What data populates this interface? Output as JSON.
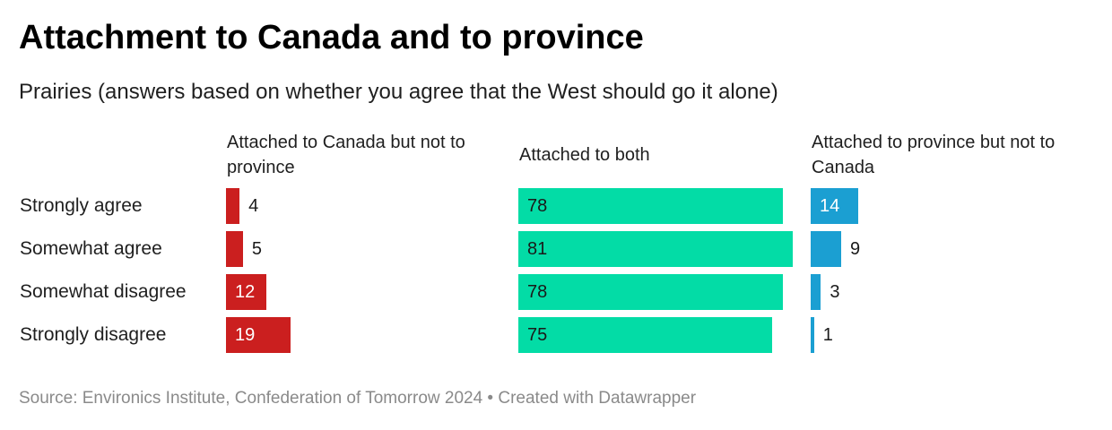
{
  "title": "Attachment to Canada and to province",
  "subtitle": "Prairies (answers based on whether you agree that the West should go it alone)",
  "source": "Source: Environics Institute, Confederation of Tomorrow 2024 • Created with Datawrapper",
  "chart_data": {
    "type": "bar",
    "orientation": "horizontal",
    "layout": "small-multiples",
    "categories": [
      "Strongly agree",
      "Somewhat agree",
      "Somewhat disagree",
      "Strongly disagree"
    ],
    "series": [
      {
        "name": "Attached to Canada but not to province",
        "values": [
          4,
          5,
          12,
          19
        ],
        "color": "#cb1f1f"
      },
      {
        "name": "Attached to both",
        "values": [
          78,
          81,
          78,
          75
        ],
        "color": "#03dca6"
      },
      {
        "name": "Attached to province but not to Canada",
        "values": [
          14,
          9,
          3,
          1
        ],
        "color": "#1b9fd2"
      }
    ],
    "xlim": [
      0,
      81
    ],
    "grid": false,
    "legend": "none"
  }
}
